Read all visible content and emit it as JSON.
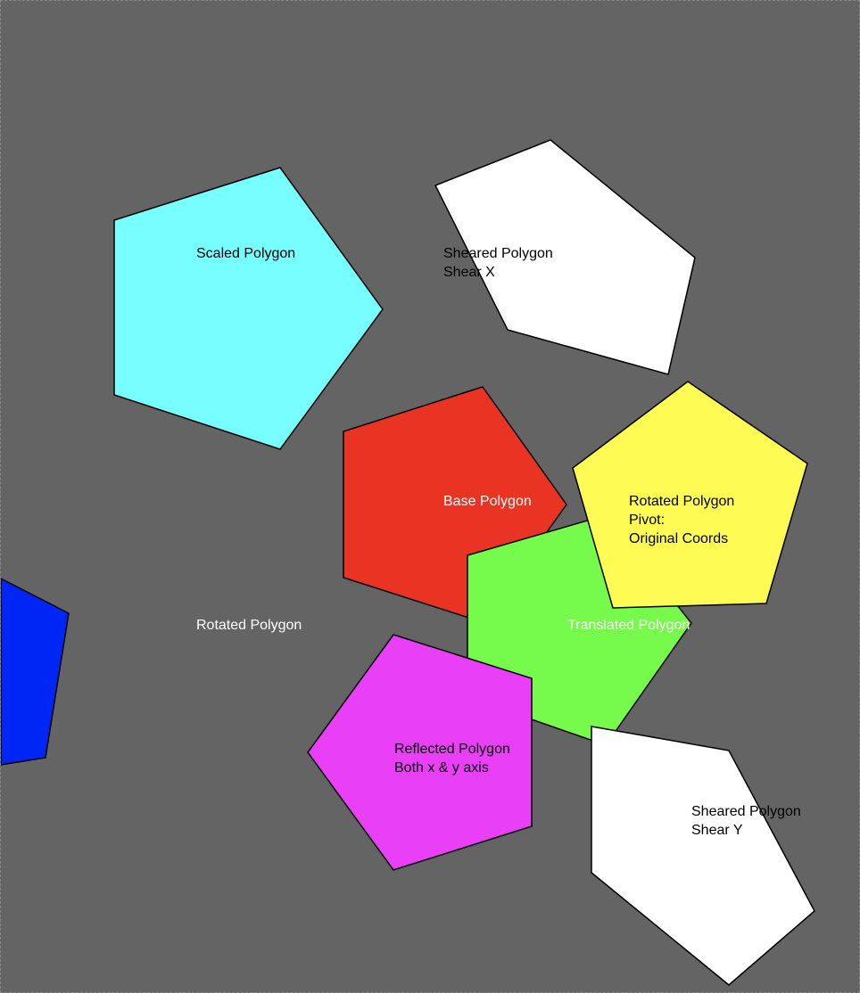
{
  "canvas": {
    "background": "#646464"
  },
  "polygons": [
    {
      "id": "scaled",
      "fill": "#77fefe",
      "text_color": "#000000",
      "lines": [
        "Scaled Polygon"
      ]
    },
    {
      "id": "sheared-x",
      "fill": "#ffffff",
      "text_color": "#000000",
      "lines": [
        "Sheared Polygon",
        "Shear X"
      ]
    },
    {
      "id": "base",
      "fill": "#e93424",
      "text_color": "#ffffff",
      "lines": [
        "Base Polygon"
      ]
    },
    {
      "id": "translated",
      "fill": "#76fa4c",
      "text_color": "#ffffff",
      "lines": [
        "Translated Polygon"
      ]
    },
    {
      "id": "rotated-pivot",
      "fill": "#fefb54",
      "text_color": "#000000",
      "lines": [
        "Rotated Polygon",
        "Pivot:",
        "Original Coords"
      ]
    },
    {
      "id": "rotated",
      "fill": "#0026f5",
      "text_color": "#ffffff",
      "lines": [
        "Rotated Polygon"
      ]
    },
    {
      "id": "reflected",
      "fill": "#e93ff7",
      "text_color": "#000000",
      "lines": [
        "Reflected Polygon",
        "Both x & y axis"
      ]
    },
    {
      "id": "sheared-y",
      "fill": "#ffffff",
      "text_color": "#000000",
      "lines": [
        "Sheared Polygon",
        "Shear Y"
      ]
    }
  ]
}
